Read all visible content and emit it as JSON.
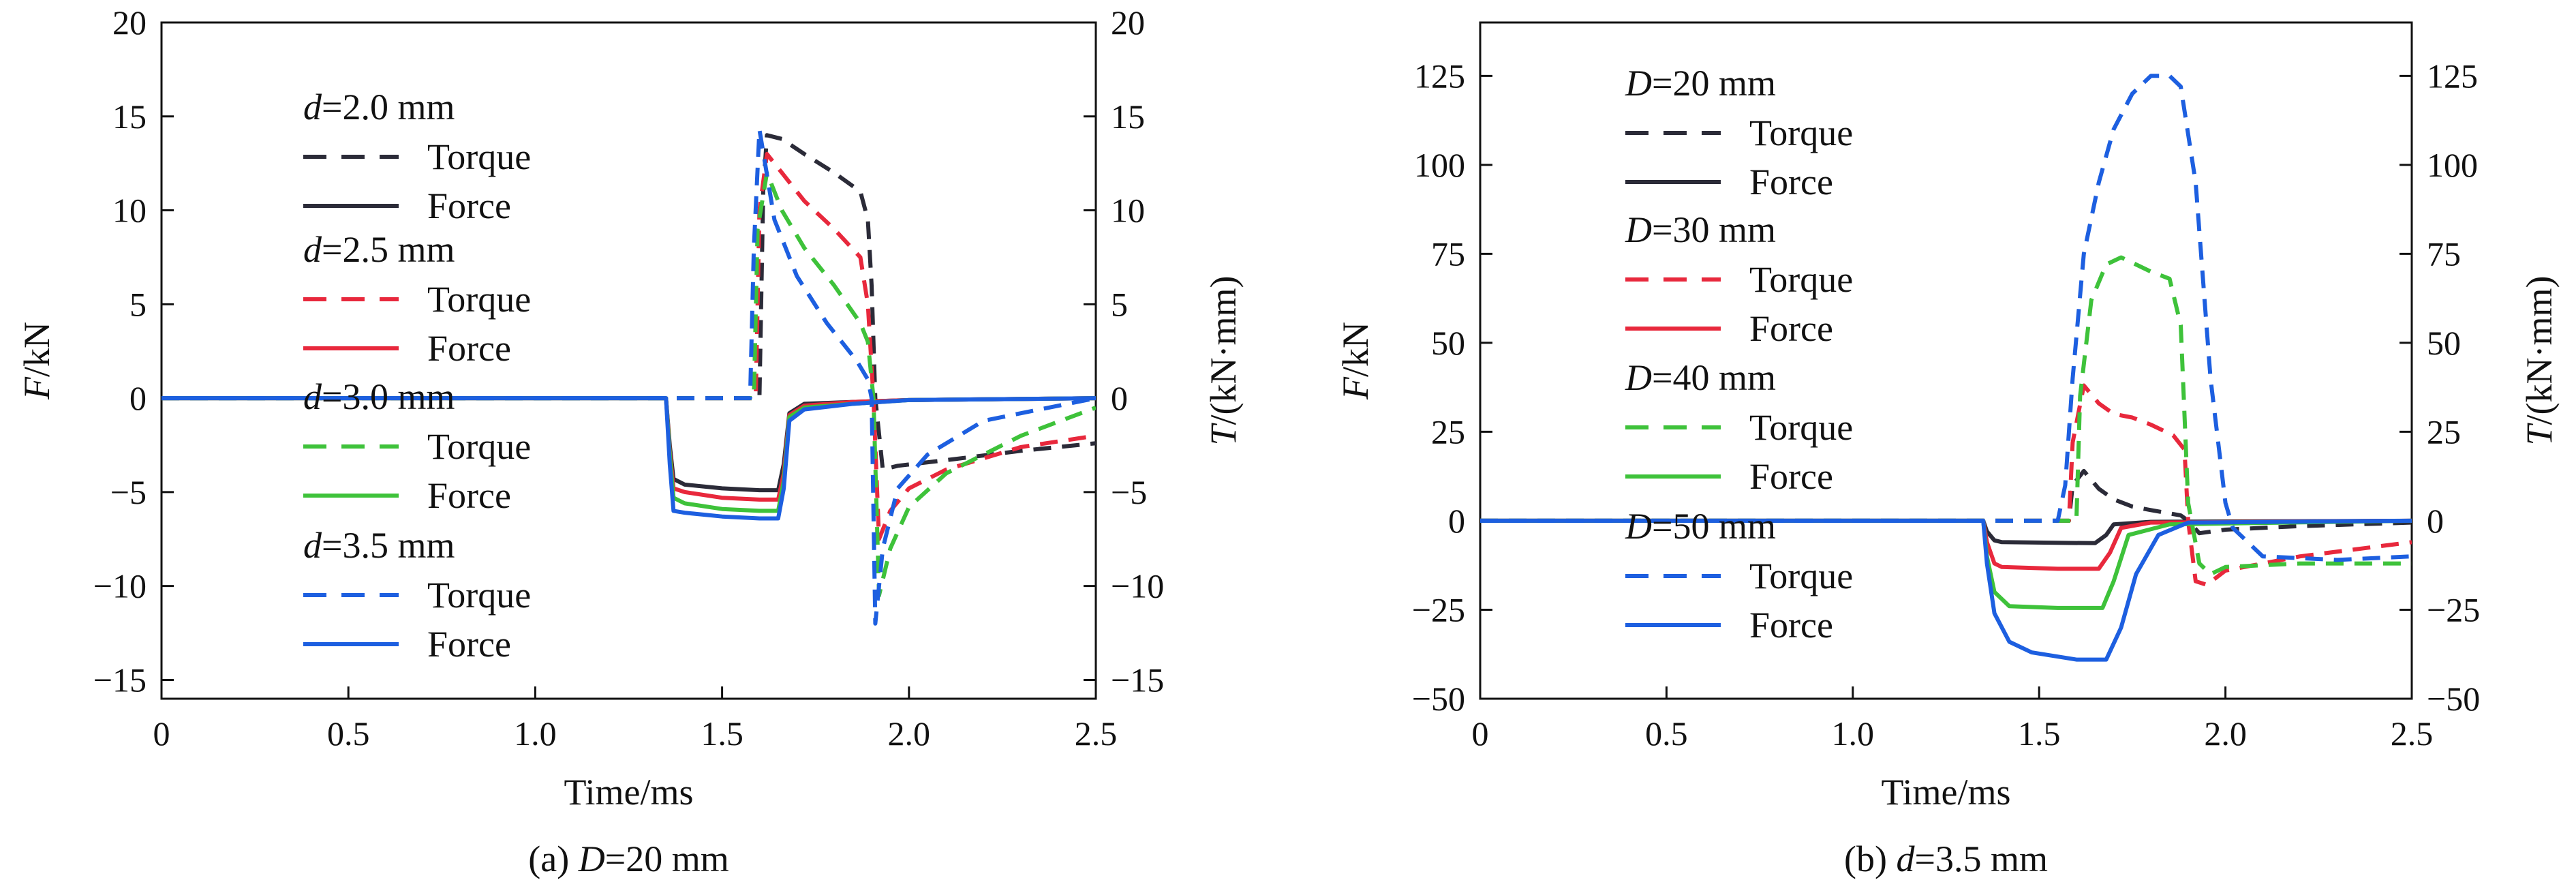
{
  "chart_data": [
    {
      "type": "line",
      "caption_prefix": "(a) ",
      "caption_var": "D",
      "caption_rest": "=20 mm",
      "xlabel": "Time/ms",
      "ylabel_left_var": "F",
      "ylabel_left_rest": "/kN",
      "ylabel_right_var": "T",
      "ylabel_right_rest": "/(kN·mm)",
      "xlim": [
        0,
        2.5
      ],
      "ylim_left": [
        -16,
        20
      ],
      "ylim_right": [
        -16,
        20
      ],
      "xticks": [
        "0",
        "0.5",
        "1.0",
        "1.5",
        "2.0",
        "2.5"
      ],
      "xtick_values": [
        0,
        0.5,
        1.0,
        1.5,
        2.0,
        2.5
      ],
      "yticks_left": [
        "20",
        "15",
        "10",
        "5",
        "0",
        "−5",
        "−10",
        "−15"
      ],
      "ytick_values_left": [
        20,
        15,
        10,
        5,
        0,
        -5,
        -10,
        -15
      ],
      "yticks_right": [
        "20",
        "15",
        "10",
        "5",
        "0",
        "−5",
        "−10",
        "−15"
      ],
      "ytick_values_right": [
        20,
        15,
        10,
        5,
        0,
        -5,
        -10,
        -15
      ],
      "grid": false,
      "legend_placement": "upper-left",
      "groups": [
        {
          "var": "d",
          "rest": "=2.0 mm",
          "color": "#2b2b38",
          "torque_label": "Torque",
          "force_label": "Force",
          "torque": {
            "x": [
              0,
              1.6,
              1.61,
              1.62,
              1.66,
              1.72,
              1.8,
              1.87,
              1.89,
              1.9,
              1.91,
              1.93,
              1.97,
              2.1,
              2.3,
              2.5
            ],
            "y": [
              0,
              0,
              11,
              14.0,
              13.8,
              13.0,
              12.0,
              11.0,
              9.5,
              6,
              0,
              -3.8,
              -3.6,
              -3.3,
              -2.8,
              -2.4
            ]
          },
          "force": {
            "x": [
              0,
              1.35,
              1.36,
              1.37,
              1.4,
              1.5,
              1.6,
              1.65,
              1.665,
              1.68,
              1.72,
              1.85,
              2.0,
              2.5
            ],
            "y": [
              0,
              0,
              -2.5,
              -4.3,
              -4.6,
              -4.8,
              -4.9,
              -4.9,
              -3.5,
              -0.8,
              -0.3,
              -0.2,
              -0.1,
              0
            ]
          }
        },
        {
          "var": "d",
          "rest": "=2.5 mm",
          "color": "#e8283c",
          "torque_label": "Torque",
          "force_label": "Force",
          "torque": {
            "x": [
              0,
              1.59,
              1.6,
              1.62,
              1.66,
              1.72,
              1.8,
              1.87,
              1.89,
              1.905,
              1.92,
              1.95,
              2.0,
              2.1,
              2.3,
              2.5
            ],
            "y": [
              0,
              0,
              10,
              13.0,
              12.0,
              10.5,
              9.0,
              7.5,
              5.0,
              0,
              -7.5,
              -6.0,
              -4.8,
              -3.8,
              -2.6,
              -2.0
            ]
          },
          "force": {
            "x": [
              0,
              1.35,
              1.36,
              1.37,
              1.4,
              1.5,
              1.6,
              1.65,
              1.665,
              1.68,
              1.72,
              1.85,
              2.0,
              2.5
            ],
            "y": [
              0,
              0,
              -2.8,
              -4.8,
              -5.0,
              -5.3,
              -5.4,
              -5.4,
              -4.0,
              -0.9,
              -0.4,
              -0.2,
              -0.1,
              0
            ]
          }
        },
        {
          "var": "d",
          "rest": "=3.0 mm",
          "color": "#3ec23a",
          "torque_label": "Torque",
          "force_label": "Force",
          "torque": {
            "x": [
              0,
              1.585,
              1.595,
              1.62,
              1.66,
              1.72,
              1.8,
              1.87,
              1.89,
              1.905,
              1.92,
              1.95,
              2.0,
              2.1,
              2.3,
              2.5
            ],
            "y": [
              0,
              0,
              9,
              12.0,
              10.0,
              8.0,
              6.0,
              4.0,
              3.0,
              0,
              -10.5,
              -8.0,
              -5.8,
              -4.0,
              -2.0,
              -0.5
            ]
          },
          "force": {
            "x": [
              0,
              1.35,
              1.36,
              1.37,
              1.4,
              1.5,
              1.6,
              1.65,
              1.665,
              1.68,
              1.72,
              1.85,
              2.0,
              2.5
            ],
            "y": [
              0,
              0,
              -3.0,
              -5.3,
              -5.6,
              -5.9,
              -6.0,
              -6.0,
              -4.4,
              -1.0,
              -0.5,
              -0.3,
              -0.1,
              0
            ]
          }
        },
        {
          "var": "d",
          "rest": "=3.5 mm",
          "color": "#1d5fe0",
          "torque_label": "Torque",
          "force_label": "Force",
          "torque": {
            "x": [
              0,
              1.575,
              1.585,
              1.6,
              1.64,
              1.7,
              1.78,
              1.86,
              1.89,
              1.9,
              1.91,
              1.93,
              1.97,
              2.05,
              2.2,
              2.5
            ],
            "y": [
              0,
              0,
              8,
              14.3,
              9.5,
              6.5,
              4.0,
              2.0,
              1.0,
              0,
              -12.0,
              -8.0,
              -4.8,
              -3.0,
              -1.2,
              0
            ]
          },
          "force": {
            "x": [
              0,
              1.35,
              1.36,
              1.37,
              1.4,
              1.5,
              1.6,
              1.65,
              1.665,
              1.68,
              1.72,
              1.85,
              2.0,
              2.5
            ],
            "y": [
              0,
              0,
              -3.5,
              -6.0,
              -6.1,
              -6.3,
              -6.4,
              -6.4,
              -4.8,
              -1.2,
              -0.6,
              -0.3,
              -0.1,
              0
            ]
          }
        }
      ]
    },
    {
      "type": "line",
      "caption_prefix": "(b) ",
      "caption_var": "d",
      "caption_rest": "=3.5 mm",
      "xlabel": "Time/ms",
      "ylabel_left_var": "F",
      "ylabel_left_rest": "/kN",
      "ylabel_right_var": "T",
      "ylabel_right_rest": "/(kN·mm)",
      "xlim": [
        0,
        2.5
      ],
      "ylim_left": [
        -50,
        140
      ],
      "ylim_right": [
        -50,
        140
      ],
      "xticks": [
        "0",
        "0.5",
        "1.0",
        "1.5",
        "2.0",
        "2.5"
      ],
      "xtick_values": [
        0,
        0.5,
        1.0,
        1.5,
        2.0,
        2.5
      ],
      "yticks_left": [
        "125",
        "100",
        "75",
        "50",
        "25",
        "0",
        "−25",
        "−50"
      ],
      "ytick_values_left": [
        125,
        100,
        75,
        50,
        25,
        0,
        -25,
        -50
      ],
      "yticks_right": [
        "125",
        "100",
        "75",
        "50",
        "25",
        "0",
        "−25",
        "−50"
      ],
      "ytick_values_right": [
        125,
        100,
        75,
        50,
        25,
        0,
        -25,
        -50
      ],
      "grid": false,
      "legend_placement": "upper-left",
      "groups": [
        {
          "var": "D",
          "rest": "=20 mm",
          "color": "#2b2b38",
          "torque_label": "Torque",
          "force_label": "Force",
          "torque": {
            "x": [
              0,
              1.58,
              1.59,
              1.62,
              1.66,
              1.7,
              1.75,
              1.8,
              1.88,
              1.9,
              1.93,
              2.0,
              2.2,
              2.5
            ],
            "y": [
              0,
              0,
              10,
              14,
              9,
              6,
              4,
              3,
              1.5,
              0,
              -3.5,
              -2.5,
              -1.5,
              -0.5
            ]
          },
          "force": {
            "x": [
              0,
              1.35,
              1.36,
              1.38,
              1.4,
              1.55,
              1.65,
              1.68,
              1.7,
              1.8,
              2.5
            ],
            "y": [
              0,
              0,
              -3,
              -5.5,
              -6.0,
              -6.2,
              -6.3,
              -4,
              -1,
              -0.3,
              0
            ]
          }
        },
        {
          "var": "D",
          "rest": "=30 mm",
          "color": "#e8283c",
          "torque_label": "Torque",
          "force_label": "Force",
          "torque": {
            "x": [
              0,
              1.58,
              1.59,
              1.62,
              1.66,
              1.7,
              1.75,
              1.8,
              1.86,
              1.89,
              1.9,
              1.92,
              1.95,
              2.0,
              2.2,
              2.5
            ],
            "y": [
              0,
              0,
              22,
              38,
              33,
              30,
              29,
              27,
              24,
              20,
              0,
              -17,
              -18,
              -14,
              -10,
              -6
            ]
          },
          "force": {
            "x": [
              0,
              1.35,
              1.36,
              1.38,
              1.4,
              1.55,
              1.66,
              1.69,
              1.72,
              1.8,
              2.5
            ],
            "y": [
              0,
              0,
              -6,
              -12,
              -13,
              -13.5,
              -13.5,
              -9,
              -2,
              -0.5,
              0
            ]
          }
        },
        {
          "var": "D",
          "rest": "=40 mm",
          "color": "#3ec23a",
          "torque_label": "Torque",
          "force_label": "Force",
          "torque": {
            "x": [
              0,
              1.6,
              1.61,
              1.64,
              1.68,
              1.72,
              1.76,
              1.8,
              1.85,
              1.88,
              1.9,
              1.93,
              1.96,
              2.0,
              2.2,
              2.5
            ],
            "y": [
              0,
              0,
              35,
              62,
              72,
              74,
              72,
              70,
              68,
              55,
              5,
              -12,
              -15,
              -13,
              -12,
              -12
            ]
          },
          "force": {
            "x": [
              0,
              1.35,
              1.36,
              1.38,
              1.42,
              1.55,
              1.67,
              1.7,
              1.74,
              1.85,
              2.5
            ],
            "y": [
              0,
              0,
              -10,
              -20,
              -24,
              -24.5,
              -24.5,
              -17,
              -4,
              -1,
              0
            ]
          }
        },
        {
          "var": "D",
          "rest": "=50 mm",
          "color": "#1d5fe0",
          "torque_label": "Torque",
          "force_label": "Force",
          "torque": {
            "x": [
              0,
              1.55,
              1.57,
              1.59,
              1.62,
              1.66,
              1.7,
              1.75,
              1.8,
              1.85,
              1.88,
              1.92,
              1.96,
              2.0,
              2.02,
              2.1,
              2.3,
              2.5
            ],
            "y": [
              0,
              0,
              10,
              40,
              75,
              95,
              110,
              120,
              125,
              125,
              122,
              95,
              40,
              5,
              -2,
              -10,
              -11,
              -10
            ]
          },
          "force": {
            "x": [
              0,
              1.35,
              1.36,
              1.38,
              1.42,
              1.48,
              1.6,
              1.68,
              1.72,
              1.76,
              1.82,
              1.9,
              2.5
            ],
            "y": [
              0,
              0,
              -12,
              -26,
              -34,
              -37,
              -39,
              -39,
              -30,
              -15,
              -4,
              -0.5,
              0
            ]
          }
        }
      ]
    }
  ]
}
